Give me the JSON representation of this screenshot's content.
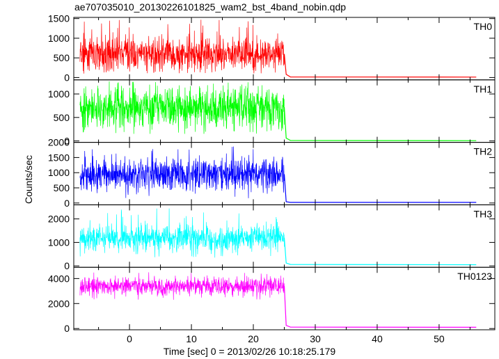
{
  "chart_data": {
    "type": "line",
    "title": "ae707035010_20130226101825_wam2_bst_4band_nobin.qdp",
    "xlabel": "Time [sec] 0 = 2013/02/26 10:18:25.179",
    "ylabel": "Counts/sec",
    "xlim": [
      -9,
      59
    ],
    "x_ticks": [
      0,
      10,
      20,
      30,
      40,
      50
    ],
    "burst_window": [
      -8,
      25
    ],
    "tail_end": 56,
    "grid": false,
    "panels": [
      {
        "name": "TH0",
        "color": "#ff0000",
        "ylim": [
          -60,
          1530
        ],
        "y_ticks": [
          0,
          500,
          1000,
          1500
        ],
        "level_before_25s": 600,
        "spread": 200,
        "spike_max": 1500,
        "min": 100,
        "level_after_25s": 10,
        "points": [
          [
            -8,
            600
          ],
          [
            -4,
            610
          ],
          [
            0,
            590
          ],
          [
            5,
            620
          ],
          [
            10,
            600
          ],
          [
            15,
            605
          ],
          [
            20,
            595
          ],
          [
            25,
            600
          ],
          [
            25.3,
            80
          ],
          [
            26,
            15
          ],
          [
            56,
            10
          ]
        ]
      },
      {
        "name": "TH1",
        "color": "#00ff00",
        "ylim": [
          -30,
          1300
        ],
        "y_ticks": [
          0,
          500,
          1000
        ],
        "level_before_25s": 720,
        "spread": 220,
        "spike_max": 1280,
        "min": 150,
        "level_after_25s": 5,
        "points": [
          [
            -8,
            720
          ],
          [
            -4,
            730
          ],
          [
            0,
            715
          ],
          [
            5,
            725
          ],
          [
            10,
            720
          ],
          [
            15,
            722
          ],
          [
            20,
            718
          ],
          [
            25,
            720
          ],
          [
            25.3,
            60
          ],
          [
            26,
            10
          ],
          [
            56,
            5
          ]
        ]
      },
      {
        "name": "TH2",
        "color": "#0000ff",
        "ylim": [
          -60,
          2000
        ],
        "y_ticks": [
          0,
          500,
          1000,
          1500,
          2000
        ],
        "level_before_25s": 950,
        "spread": 250,
        "spike_max": 1900,
        "min": 150,
        "level_after_25s": 20,
        "points": [
          [
            -8,
            950
          ],
          [
            -4,
            940
          ],
          [
            0,
            955
          ],
          [
            5,
            945
          ],
          [
            10,
            950
          ],
          [
            15,
            960
          ],
          [
            20,
            940
          ],
          [
            25,
            950
          ],
          [
            25.3,
            40
          ],
          [
            26,
            20
          ],
          [
            56,
            20
          ]
        ]
      },
      {
        "name": "TH3",
        "color": "#00ffff",
        "ylim": [
          -60,
          2600
        ],
        "y_ticks": [
          0,
          1000,
          2000
        ],
        "level_before_25s": 1200,
        "spread": 280,
        "spike_max": 2450,
        "min": 350,
        "level_after_25s": 50,
        "points": [
          [
            -8,
            1200
          ],
          [
            -4,
            1210
          ],
          [
            0,
            1190
          ],
          [
            5,
            1200
          ],
          [
            10,
            1205
          ],
          [
            15,
            1195
          ],
          [
            20,
            1200
          ],
          [
            25,
            1200
          ],
          [
            25.3,
            120
          ],
          [
            26,
            60
          ],
          [
            56,
            50
          ]
        ]
      },
      {
        "name": "TH0123",
        "color": "#ff00ff",
        "ylim": [
          -100,
          4900
        ],
        "y_ticks": [
          0,
          2000,
          4000
        ],
        "level_before_25s": 3400,
        "spread": 350,
        "spike_max": 4500,
        "min": 2300,
        "level_after_25s": 100,
        "points": [
          [
            -8,
            3400
          ],
          [
            -4,
            3420
          ],
          [
            0,
            3390
          ],
          [
            5,
            3410
          ],
          [
            10,
            3400
          ],
          [
            15,
            3405
          ],
          [
            20,
            3395
          ],
          [
            25,
            3400
          ],
          [
            25.3,
            250
          ],
          [
            26,
            110
          ],
          [
            56,
            100
          ]
        ]
      }
    ]
  }
}
